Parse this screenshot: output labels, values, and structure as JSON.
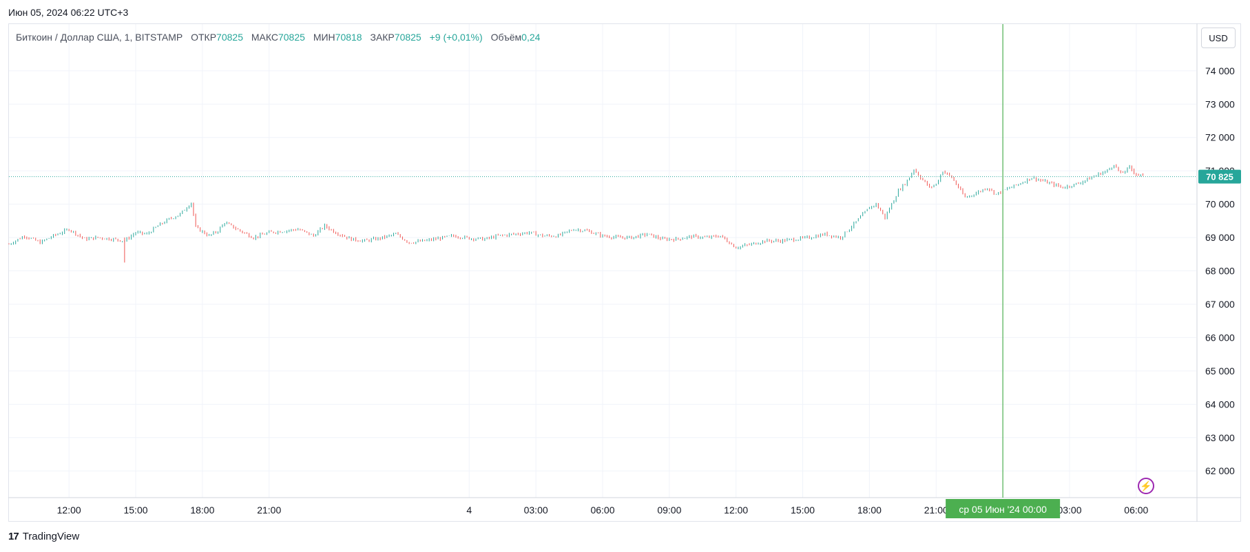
{
  "header": {
    "datetime": "Июн 05, 2024 06:22 UTC+3"
  },
  "legend": {
    "symbol": "Биткоин / Доллар США, 1, BITSTAMP",
    "open_label": "ОТКР",
    "open_value": "70825",
    "high_label": "МАКС",
    "high_value": "70825",
    "low_label": "МИН",
    "low_value": "70818",
    "close_label": "ЗАКР",
    "close_value": "70825",
    "change": "+9 (+0,01%)",
    "volume_label": "Объём",
    "volume_value": "0,24"
  },
  "currency_button": "USD",
  "footer": {
    "logo": "17",
    "brand": "TradingView"
  },
  "colors": {
    "up": "#26a69a",
    "down": "#ef5350",
    "crosshair": "#4caf50",
    "grid": "#f0f3fa"
  },
  "chart_data": {
    "type": "line",
    "title": "",
    "symbol": "BTC/USD",
    "y_ticks": [
      "74 000",
      "73 000",
      "72 000",
      "71 000",
      "70 000",
      "69 000",
      "68 000",
      "67 000",
      "66 000",
      "65 000",
      "64 000",
      "63 000",
      "62 000"
    ],
    "y_tick_values": [
      74000,
      73000,
      72000,
      71000,
      70000,
      69000,
      68000,
      67000,
      66000,
      65000,
      64000,
      63000,
      62000
    ],
    "ylim": [
      61200,
      75400
    ],
    "x_ticks": [
      "12:00",
      "15:00",
      "18:00",
      "21:00",
      "4",
      "03:00",
      "06:00",
      "09:00",
      "12:00",
      "15:00",
      "18:00",
      "21:00",
      "03:00",
      "06:00"
    ],
    "x_tick_hours": [
      -42,
      -39,
      -36,
      -33,
      -24,
      -21,
      -18,
      -15,
      -12,
      -9,
      -6,
      -3,
      3,
      6
    ],
    "xlim_hours": [
      -44.7,
      8.7
    ],
    "crosshair": {
      "hour": 0,
      "label": "ср 05 Июн '24   00:00"
    },
    "last_price": {
      "value": 70825,
      "label": "70 825"
    },
    "series": [
      {
        "x_hours": [
          -44.7,
          -44.0,
          -43.3,
          -42.7,
          -42.0,
          -41.3,
          -40.7,
          -40.0,
          -39.5,
          -39.0,
          -38.5,
          -38.0,
          -37.5,
          -37.0,
          -36.5,
          -36.3,
          -35.7,
          -35.3,
          -35.0,
          -34.3,
          -33.7,
          -33.0,
          -32.3,
          -31.7,
          -31.0,
          -30.5,
          -30.0,
          -29.3,
          -28.7,
          -28.0,
          -27.3,
          -26.7,
          -26.0,
          -25.3,
          -24.7,
          -24.0,
          -23.3,
          -22.7,
          -22.0,
          -21.3,
          -20.7,
          -20.0,
          -19.3,
          -18.7,
          -18.0,
          -17.3,
          -16.7,
          -16.0,
          -15.3,
          -14.7,
          -14.0,
          -13.3,
          -12.7,
          -12.0,
          -11.3,
          -10.7,
          -10.0,
          -9.3,
          -8.7,
          -8.0,
          -7.3,
          -6.7,
          -6.0,
          -5.7,
          -5.3,
          -5.0,
          -4.7,
          -4.3,
          -4.0,
          -3.7,
          -3.3,
          -3.0,
          -2.7,
          -2.3,
          -2.0,
          -1.7,
          -1.3,
          -1.0,
          -0.7,
          -0.3,
          0.0,
          0.7,
          1.3,
          2.0,
          2.7,
          3.3,
          4.0,
          4.3,
          4.7,
          5.0,
          5.3,
          5.7,
          6.0,
          6.4
        ],
        "values": [
          68800,
          69050,
          68850,
          69050,
          69250,
          68950,
          69000,
          68950,
          68900,
          69150,
          69100,
          69350,
          69550,
          69700,
          70050,
          69300,
          69050,
          69200,
          69450,
          69200,
          69000,
          69150,
          69200,
          69250,
          69050,
          69350,
          69150,
          68950,
          68900,
          68980,
          69100,
          68850,
          68900,
          68980,
          69050,
          68980,
          68950,
          69050,
          69100,
          69150,
          69050,
          69050,
          69250,
          69200,
          69050,
          69000,
          69000,
          69100,
          68950,
          68950,
          69030,
          69000,
          69050,
          68700,
          68800,
          68900,
          68900,
          68950,
          69000,
          69100,
          69000,
          69400,
          69900,
          70000,
          69600,
          70000,
          70400,
          70700,
          71050,
          70800,
          70500,
          70600,
          71000,
          70800,
          70500,
          70200,
          70300,
          70400,
          70500,
          70300,
          70400,
          70600,
          70800,
          70650,
          70500,
          70600,
          70800,
          70900,
          71000,
          71200,
          70900,
          71100,
          70900,
          70825
        ]
      }
    ]
  }
}
